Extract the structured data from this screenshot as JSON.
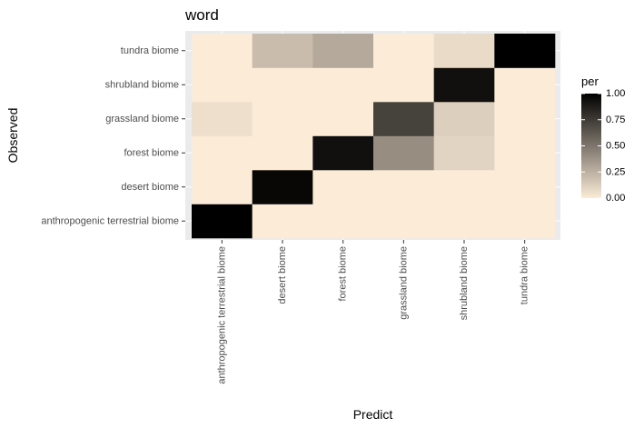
{
  "chart_data": {
    "type": "heatmap",
    "title": "word",
    "xlabel": "Predict",
    "ylabel": "Observed",
    "x_categories": [
      "anthropogenic terrestrial biome",
      "desert biome",
      "forest biome",
      "grassland biome",
      "shrubland biome",
      "tundra biome"
    ],
    "y_categories": [
      "anthropogenic terrestrial biome",
      "desert biome",
      "forest biome",
      "grassland biome",
      "shrubland biome",
      "tundra biome"
    ],
    "values": [
      [
        1.0,
        0.0,
        0.0,
        0.0,
        0.0,
        0.0
      ],
      [
        0.0,
        0.97,
        0.0,
        0.0,
        0.0,
        0.0
      ],
      [
        0.0,
        0.0,
        0.93,
        0.4,
        0.1,
        0.0
      ],
      [
        0.05,
        0.0,
        0.0,
        0.72,
        0.12,
        0.0
      ],
      [
        0.0,
        0.0,
        0.0,
        0.0,
        0.93,
        0.0
      ],
      [
        0.0,
        0.2,
        0.28,
        0.0,
        0.07,
        1.0
      ]
    ],
    "legend": {
      "title": "per",
      "ticks": [
        "0.00",
        "0.25",
        "0.50",
        "0.75",
        "1.00"
      ],
      "range": [
        0,
        1
      ],
      "low_color": "#fbebd7",
      "high_color": "#000000",
      "placement": "right"
    },
    "grid": true
  },
  "colors": {
    "panel_background": "#ebebeb",
    "grid_line": "#ffffff"
  }
}
